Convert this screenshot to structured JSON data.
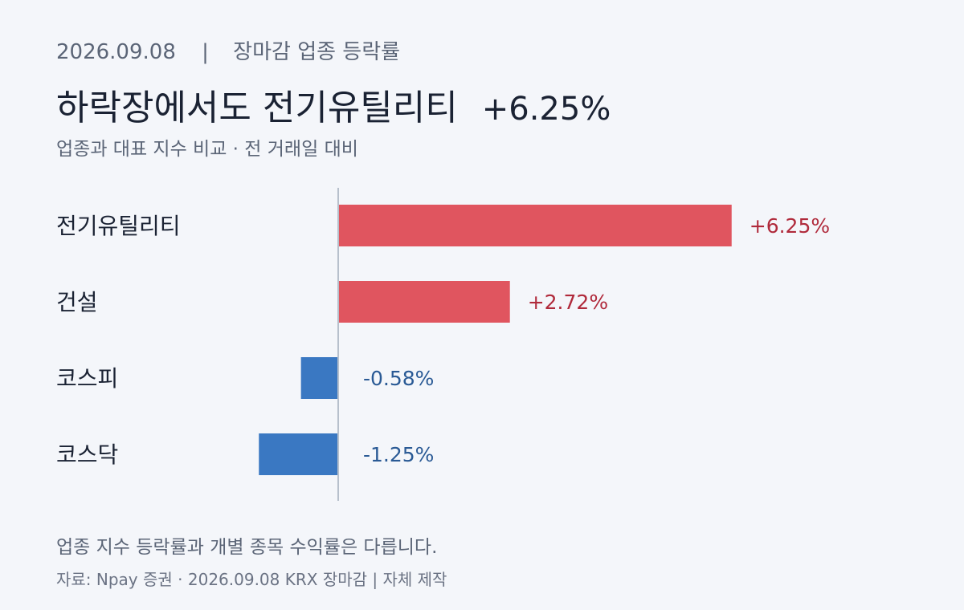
{
  "header": {
    "date": "2026.09.08",
    "separator": "|",
    "section": "장마감 업종 등락률"
  },
  "headline": {
    "text": "하락장에서도 전기유틸리티",
    "value": "+6.25%"
  },
  "subtitle": "업종과 대표 지수 비교 · 전 거래일 대비",
  "chart_data": {
    "type": "bar",
    "orientation": "horizontal",
    "unit": "%",
    "categories": [
      "전기유틸리티",
      "건설",
      "코스피",
      "코스닥"
    ],
    "values": [
      6.25,
      2.72,
      -0.58,
      -1.25
    ],
    "value_labels": [
      "+6.25%",
      "+2.72%",
      "-0.58%",
      "-1.25%"
    ],
    "colors": {
      "positive_bar": "#e0555f",
      "positive_text": "#b02a3b",
      "negative_bar": "#3a78c2",
      "negative_text": "#2a5a95",
      "zero_axis": "#b7c0cc",
      "category_text": "#1a2233"
    },
    "grid": false
  },
  "footer": {
    "note": "업종 지수 등락률과 개별 종목 수익률은 다릅니다.",
    "source": "자료: Npay 증권 · 2026.09.08 KRX 장마감 | 자체 제작"
  }
}
